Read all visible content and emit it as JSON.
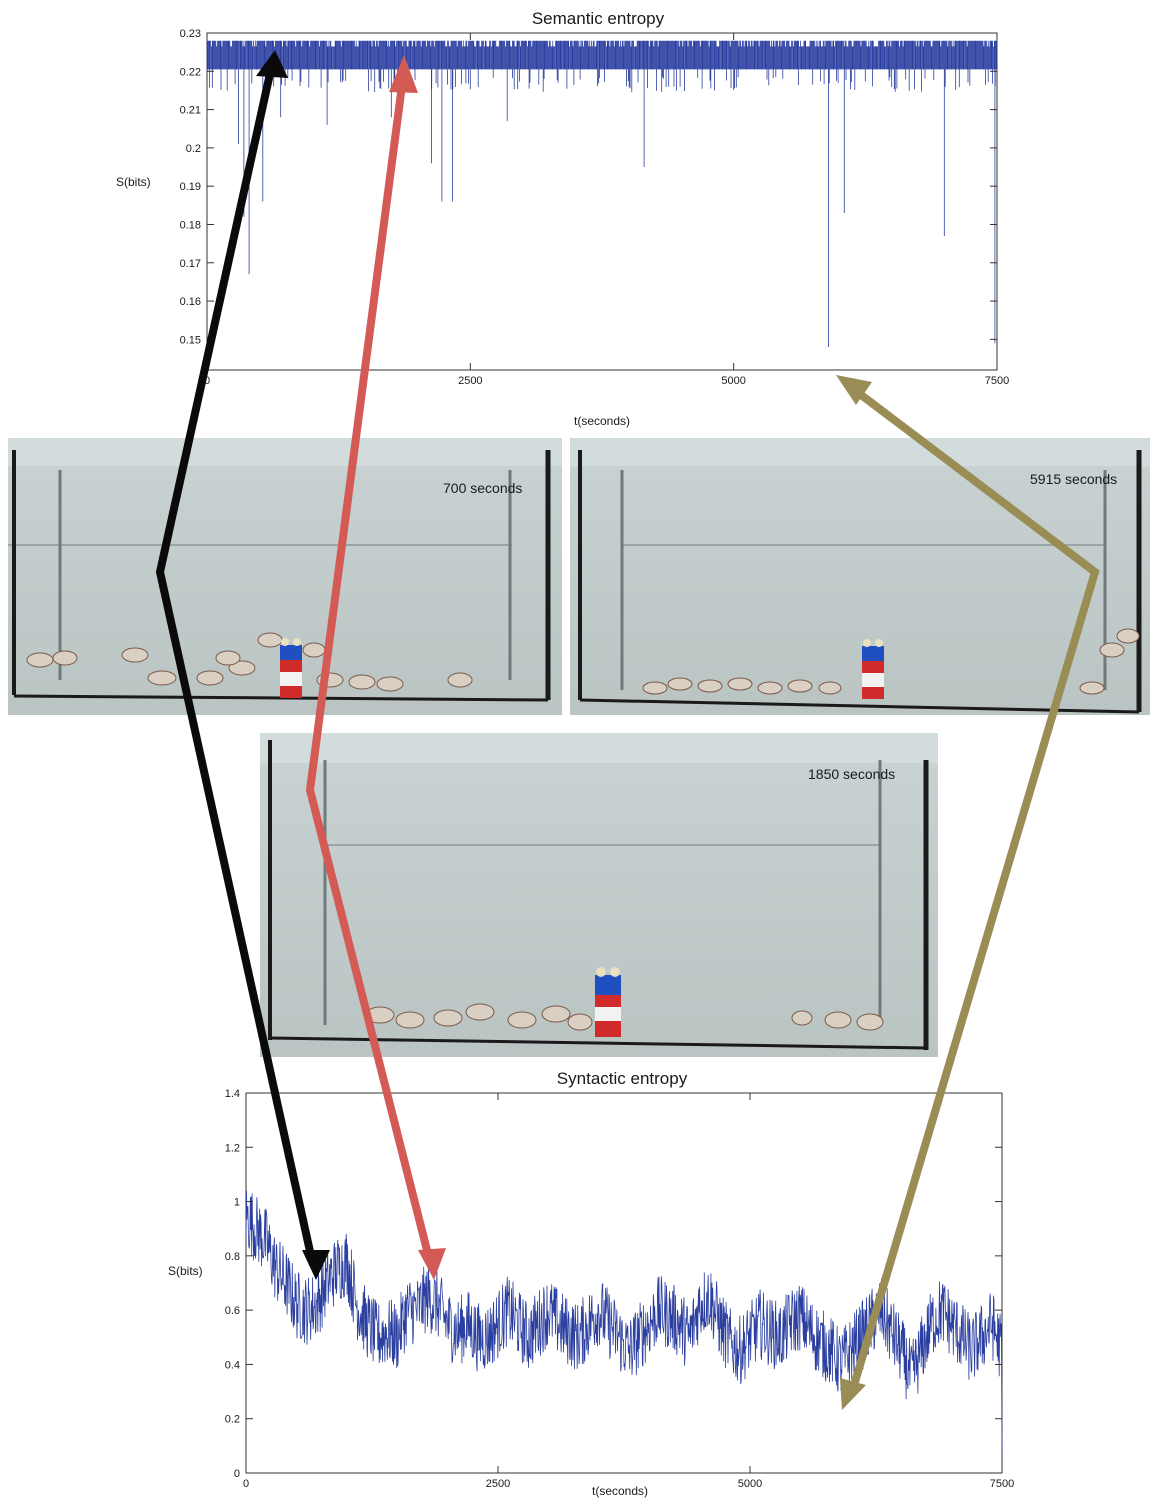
{
  "chart_data": [
    {
      "type": "line",
      "title": "Semantic entropy",
      "xlabel": "t(seconds)",
      "ylabel": "S(bits)",
      "xlim": [
        0,
        7500
      ],
      "ylim": [
        0.142,
        0.23
      ],
      "xticks": [
        0,
        2500,
        5000,
        7500
      ],
      "yticks": [
        0.15,
        0.16,
        0.17,
        0.18,
        0.19,
        0.2,
        0.21,
        0.22,
        0.23
      ],
      "xtick_labels": [
        "0",
        "2500",
        "5000",
        "7500"
      ],
      "ytick_labels": [
        "0.15",
        "0.16",
        "0.17",
        "0.18",
        "0.19",
        "0.2",
        "0.21",
        "0.22",
        "0.23"
      ],
      "grid": false,
      "baseline": 0.2205,
      "upper_band": 0.228,
      "spikes": [
        {
          "x": 300,
          "y": 0.201
        },
        {
          "x": 350,
          "y": 0.182
        },
        {
          "x": 400,
          "y": 0.167
        },
        {
          "x": 530,
          "y": 0.186
        },
        {
          "x": 700,
          "y": 0.208
        },
        {
          "x": 1140,
          "y": 0.206
        },
        {
          "x": 1750,
          "y": 0.208
        },
        {
          "x": 2130,
          "y": 0.196
        },
        {
          "x": 2230,
          "y": 0.186
        },
        {
          "x": 2330,
          "y": 0.186
        },
        {
          "x": 2850,
          "y": 0.207
        },
        {
          "x": 4150,
          "y": 0.195
        },
        {
          "x": 5900,
          "y": 0.148
        },
        {
          "x": 6050,
          "y": 0.183
        },
        {
          "x": 7000,
          "y": 0.177
        },
        {
          "x": 7480,
          "y": 0.149
        }
      ],
      "color": "#2b3fa0"
    },
    {
      "type": "line",
      "title": "Syntactic entropy",
      "xlabel": "t(seconds)",
      "ylabel": "S(bits)",
      "xlim": [
        0,
        7500
      ],
      "ylim": [
        0,
        1.4
      ],
      "xticks": [
        0,
        2500,
        5000,
        7500
      ],
      "yticks": [
        0,
        0.2,
        0.4,
        0.6,
        0.8,
        1,
        1.2,
        1.4
      ],
      "xtick_labels": [
        "0",
        "2500",
        "5000",
        "7500"
      ],
      "ytick_labels": [
        "0",
        "0.2",
        "0.4",
        "0.6",
        "0.8",
        "1",
        "1.2",
        "1.4"
      ],
      "grid": false,
      "x": [
        0,
        100,
        200,
        300,
        400,
        500,
        600,
        700,
        800,
        900,
        1000,
        1100,
        1200,
        1300,
        1400,
        1500,
        1600,
        1700,
        1800,
        1900,
        2000,
        2100,
        2200,
        2300,
        2400,
        2500,
        2600,
        2700,
        2800,
        2900,
        3000,
        3100,
        3200,
        3300,
        3400,
        3500,
        3600,
        3700,
        3800,
        3900,
        4000,
        4100,
        4200,
        4300,
        4400,
        4500,
        4600,
        4700,
        4800,
        4900,
        5000,
        5100,
        5200,
        5300,
        5400,
        5500,
        5600,
        5700,
        5800,
        5900,
        6000,
        6100,
        6200,
        6300,
        6400,
        6500,
        6600,
        6700,
        6800,
        6900,
        7000,
        7100,
        7200,
        7300,
        7400,
        7500
      ],
      "y": [
        0.95,
        0.9,
        0.85,
        0.75,
        0.7,
        0.62,
        0.6,
        0.62,
        0.7,
        0.75,
        0.78,
        0.62,
        0.55,
        0.5,
        0.52,
        0.5,
        0.6,
        0.6,
        0.65,
        0.62,
        0.55,
        0.52,
        0.55,
        0.5,
        0.5,
        0.55,
        0.6,
        0.55,
        0.5,
        0.55,
        0.6,
        0.55,
        0.52,
        0.5,
        0.55,
        0.6,
        0.55,
        0.5,
        0.45,
        0.5,
        0.55,
        0.6,
        0.58,
        0.55,
        0.5,
        0.62,
        0.65,
        0.55,
        0.48,
        0.45,
        0.5,
        0.55,
        0.52,
        0.5,
        0.55,
        0.58,
        0.52,
        0.48,
        0.45,
        0.4,
        0.45,
        0.5,
        0.55,
        0.6,
        0.52,
        0.45,
        0.35,
        0.45,
        0.55,
        0.6,
        0.55,
        0.5,
        0.45,
        0.5,
        0.55,
        0.45
      ],
      "color": "#2b3fa0"
    }
  ],
  "photos": [
    {
      "label": "700 seconds"
    },
    {
      "label": "5915 seconds"
    },
    {
      "label": "1850 seconds"
    }
  ],
  "arrow_colors": {
    "black": "#0a0a0a",
    "red": "#d45a55",
    "olive": "#9a8c55"
  }
}
